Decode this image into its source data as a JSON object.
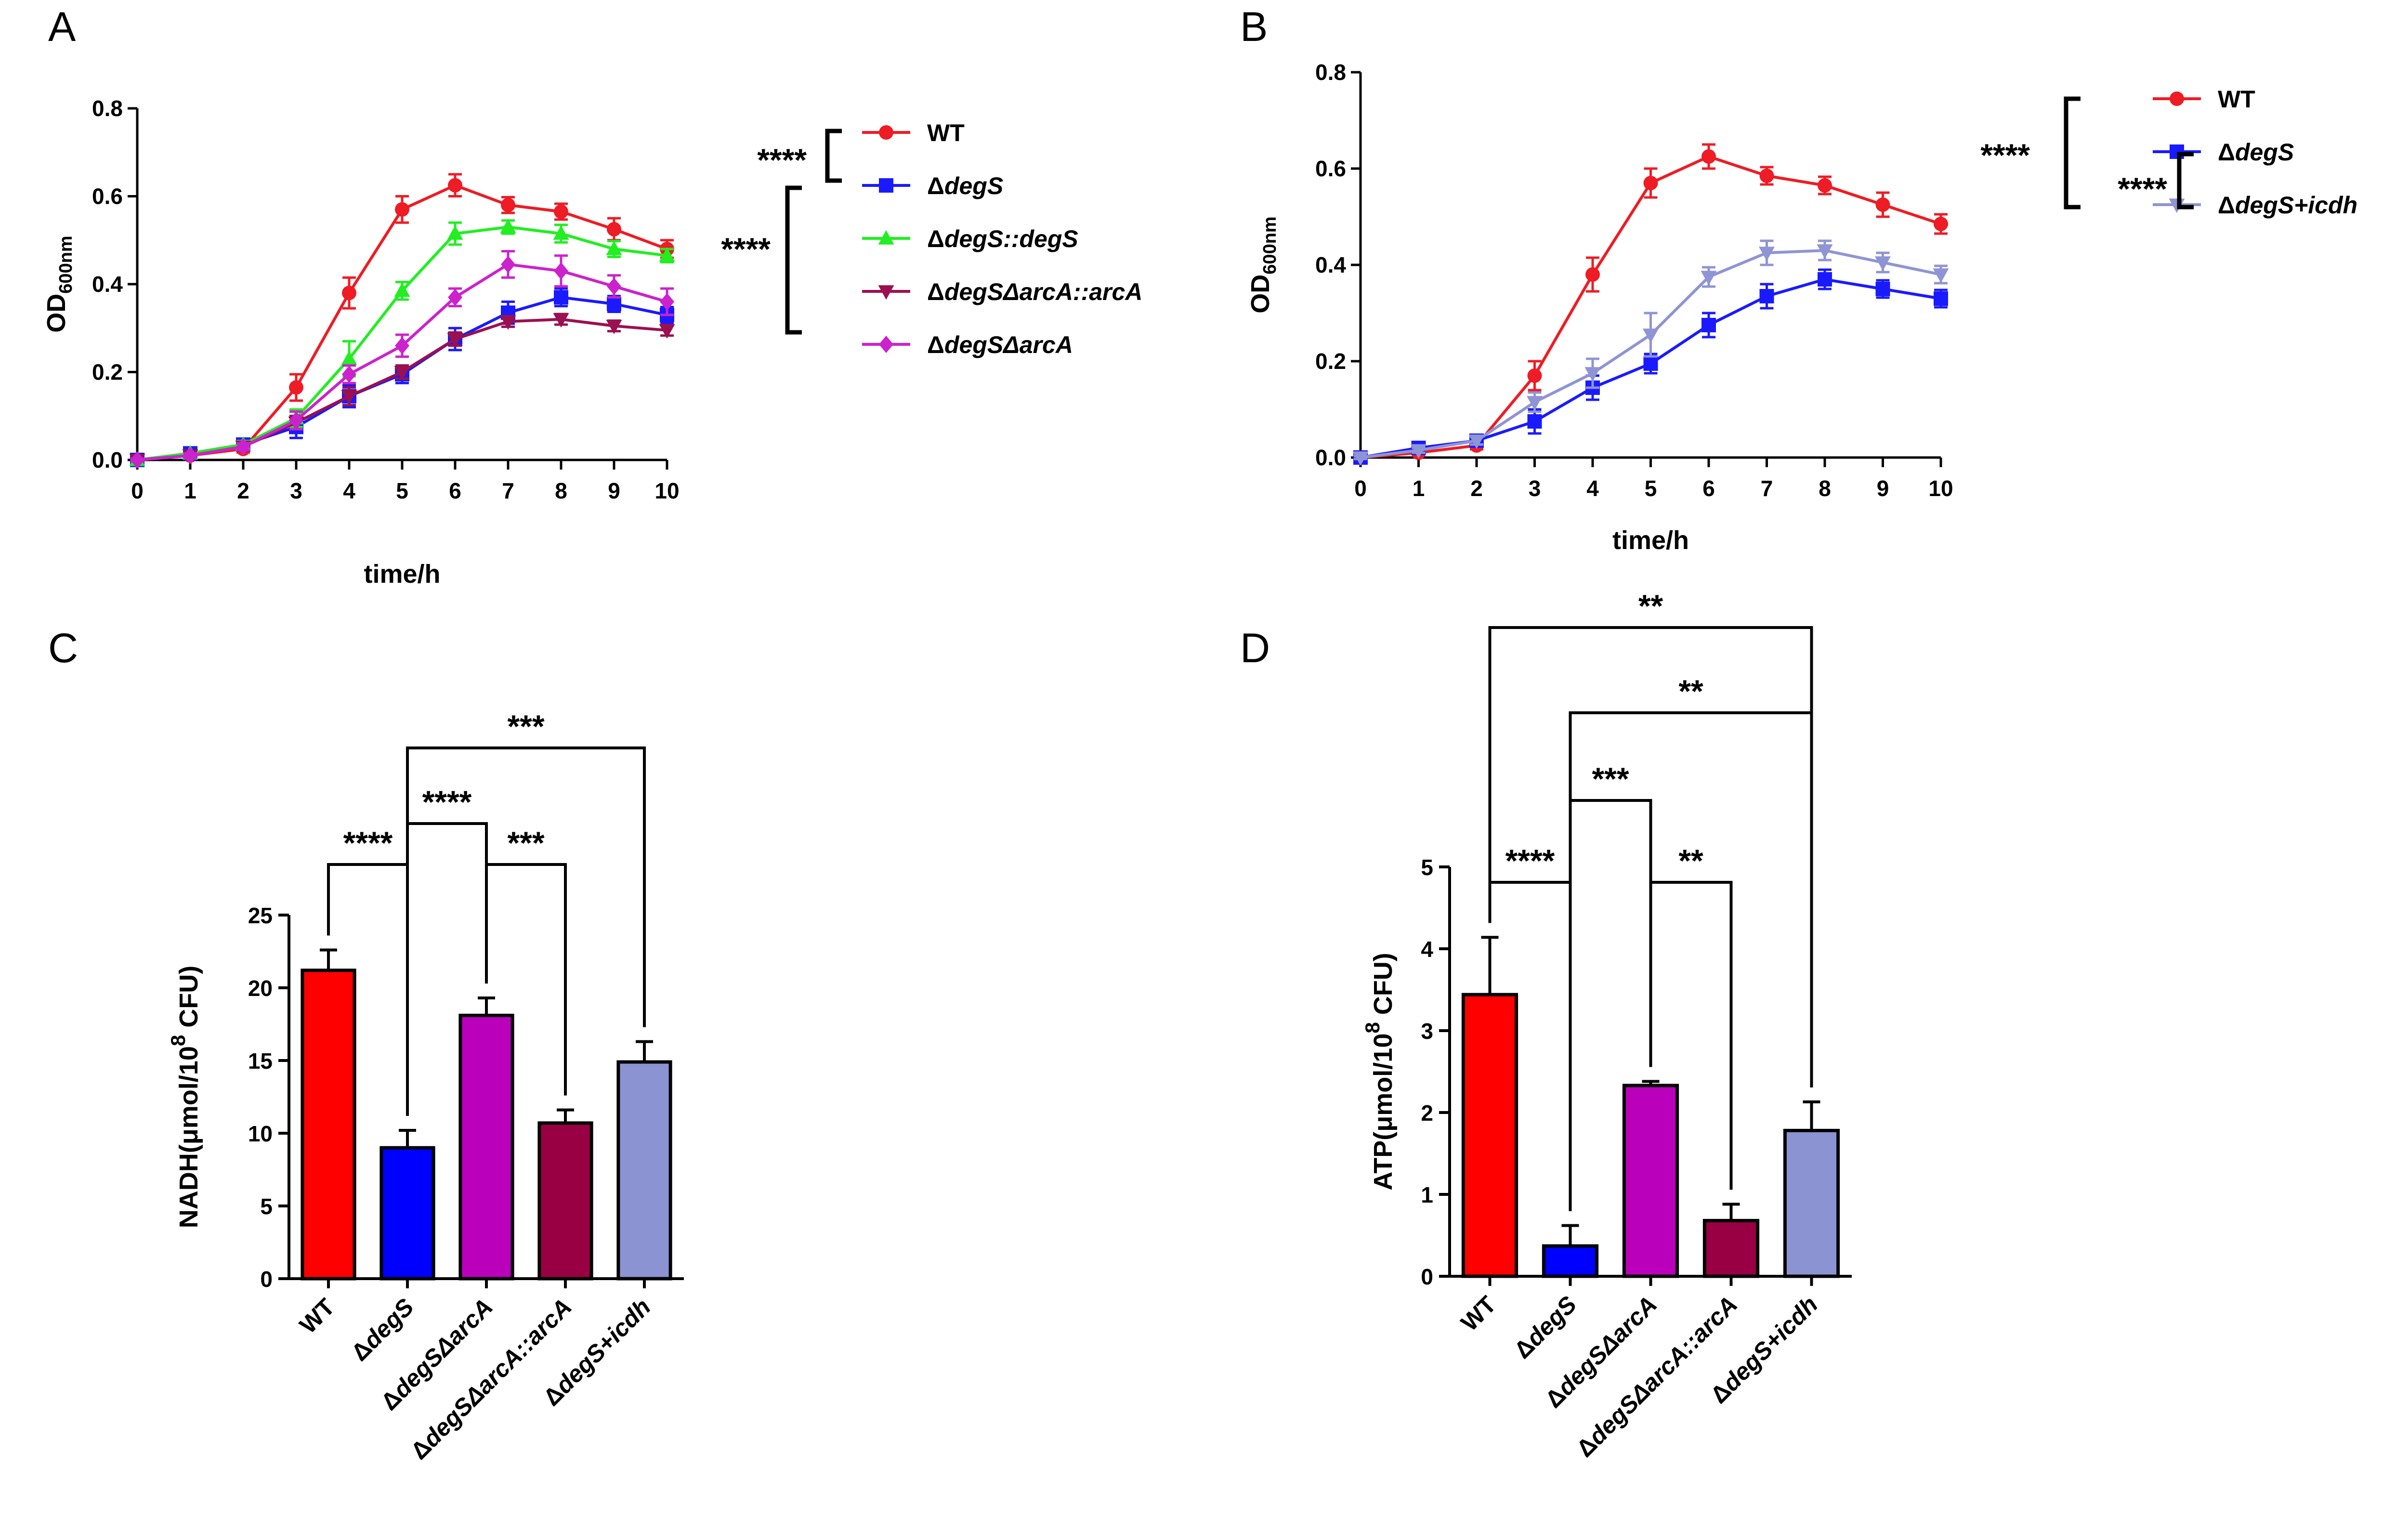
{
  "panel_labels": [
    "A",
    "B",
    "C",
    "D"
  ],
  "chart_data": [
    {
      "panel": "A",
      "type": "line",
      "xlabel": "time/h",
      "ylabel": "OD",
      "ylabel_sub": "600nm",
      "xlim": [
        0,
        10
      ],
      "ylim": [
        0,
        0.8
      ],
      "xticks": [
        "0",
        "1",
        "2",
        "3",
        "4",
        "5",
        "6",
        "7",
        "8",
        "9",
        "10"
      ],
      "yticks": [
        "0.0",
        "0.2",
        "0.4",
        "0.6",
        "0.8"
      ],
      "x": [
        0,
        1,
        2,
        3,
        4,
        5,
        6,
        7,
        8,
        9,
        10
      ],
      "series": [
        {
          "name": "WT",
          "pre": "",
          "ital": "",
          "color": "#ee1c24",
          "marker": "circle",
          "values": [
            0.0,
            0.01,
            0.025,
            0.165,
            0.38,
            0.57,
            0.625,
            0.58,
            0.565,
            0.525,
            0.48
          ],
          "err": [
            0.003,
            0.005,
            0.008,
            0.03,
            0.035,
            0.03,
            0.025,
            0.018,
            0.018,
            0.025,
            0.02
          ]
        },
        {
          "name": "ΔdegS",
          "pre": "Δ",
          "ital": "degS",
          "color": "#1a1aff",
          "marker": "square",
          "values": [
            0.0,
            0.015,
            0.035,
            0.075,
            0.145,
            0.195,
            0.275,
            0.335,
            0.37,
            0.355,
            0.33
          ],
          "err": [
            0.003,
            0.005,
            0.008,
            0.025,
            0.025,
            0.02,
            0.025,
            0.025,
            0.02,
            0.018,
            0.018
          ]
        },
        {
          "name": "ΔdegS::degS",
          "pre": "Δ",
          "ital": "degS::degS",
          "color": "#22ee22",
          "marker": "triangle",
          "values": [
            0.0,
            0.015,
            0.035,
            0.095,
            0.23,
            0.385,
            0.515,
            0.53,
            0.515,
            0.48,
            0.465
          ],
          "err": [
            0.003,
            0.005,
            0.008,
            0.02,
            0.04,
            0.02,
            0.025,
            0.015,
            0.02,
            0.018,
            0.015
          ]
        },
        {
          "name": "ΔdegSΔarcA::arcA",
          "pre": "Δ",
          "ital": "degSΔarcA::arcA",
          "color": "#9b1050",
          "marker": "triangle-down",
          "values": [
            0.0,
            0.01,
            0.03,
            0.085,
            0.145,
            0.2,
            0.275,
            0.315,
            0.32,
            0.305,
            0.295
          ],
          "err": [
            0.003,
            0.005,
            0.008,
            0.015,
            0.02,
            0.015,
            0.015,
            0.012,
            0.012,
            0.012,
            0.012
          ]
        },
        {
          "name": "ΔdegSΔarcA",
          "pre": "Δ",
          "ital": "degSΔarcA",
          "color": "#cc22cc",
          "marker": "diamond",
          "values": [
            0.0,
            0.01,
            0.03,
            0.09,
            0.195,
            0.26,
            0.37,
            0.445,
            0.43,
            0.395,
            0.36
          ],
          "err": [
            0.003,
            0.005,
            0.008,
            0.02,
            0.02,
            0.025,
            0.02,
            0.03,
            0.035,
            0.025,
            0.03
          ]
        }
      ],
      "significance": [
        "****",
        "****"
      ]
    },
    {
      "panel": "B",
      "type": "line",
      "xlabel": "time/h",
      "ylabel": "OD",
      "ylabel_sub": "600nm",
      "xlim": [
        0,
        10
      ],
      "ylim": [
        0,
        0.8
      ],
      "xticks": [
        "0",
        "1",
        "2",
        "3",
        "4",
        "5",
        "6",
        "7",
        "8",
        "9",
        "10"
      ],
      "yticks": [
        "0.0",
        "0.2",
        "0.4",
        "0.6",
        "0.8"
      ],
      "x": [
        0,
        1,
        2,
        3,
        4,
        5,
        6,
        7,
        8,
        9,
        10
      ],
      "series": [
        {
          "name": "WT",
          "pre": "",
          "ital": "",
          "color": "#ee1c24",
          "marker": "circle",
          "values": [
            0.0,
            0.01,
            0.025,
            0.17,
            0.38,
            0.57,
            0.625,
            0.585,
            0.565,
            0.525,
            0.485
          ],
          "err": [
            0.003,
            0.005,
            0.008,
            0.03,
            0.035,
            0.03,
            0.025,
            0.018,
            0.018,
            0.025,
            0.02
          ]
        },
        {
          "name": "ΔdegS",
          "pre": "Δ",
          "ital": "degS",
          "color": "#1a1aff",
          "marker": "square",
          "values": [
            0.0,
            0.02,
            0.035,
            0.075,
            0.145,
            0.195,
            0.275,
            0.335,
            0.37,
            0.35,
            0.33
          ],
          "err": [
            0.003,
            0.005,
            0.008,
            0.025,
            0.025,
            0.02,
            0.025,
            0.025,
            0.02,
            0.018,
            0.018
          ]
        },
        {
          "name": "ΔdegS+icdh",
          "pre": "Δ",
          "ital": "degS+icdh",
          "color": "#8f94d4",
          "marker": "triangle-down",
          "values": [
            0.0,
            0.015,
            0.035,
            0.115,
            0.175,
            0.255,
            0.375,
            0.425,
            0.43,
            0.405,
            0.38
          ],
          "err": [
            0.003,
            0.005,
            0.008,
            0.02,
            0.03,
            0.045,
            0.02,
            0.025,
            0.02,
            0.02,
            0.018
          ]
        }
      ],
      "significance": [
        "****",
        "****"
      ]
    },
    {
      "panel": "C",
      "type": "bar",
      "ylabel": "NADH(μmol/10",
      "ylabel_sup": "8",
      "ylabel_end": " CFU)",
      "ylim": [
        0,
        25
      ],
      "yticks": [
        "0",
        "5",
        "10",
        "15",
        "20",
        "25"
      ],
      "categories": [
        {
          "label": "WT",
          "pre": "WT",
          "ital": ""
        },
        {
          "label": "ΔdegS",
          "pre": "Δ",
          "ital": "degS"
        },
        {
          "label": "ΔdegSΔarcA",
          "pre": "Δ",
          "ital": "degSΔarcA"
        },
        {
          "label": "ΔdegSΔarcA::arcA",
          "pre": "Δ",
          "ital": "degSΔarcA::arcA"
        },
        {
          "label": "ΔdegS+icdh",
          "pre": "Δ",
          "ital": "degS+icdh"
        }
      ],
      "values": [
        21.2,
        9.0,
        18.1,
        10.7,
        14.9
      ],
      "err": [
        1.4,
        1.2,
        1.2,
        0.9,
        1.4
      ],
      "colors": [
        "#ff0000",
        "#0000ff",
        "#bb00bb",
        "#990044",
        "#8c93d2"
      ],
      "significance": [
        {
          "from": 0,
          "to": 1,
          "label": "****"
        },
        {
          "from": 1,
          "to": 2,
          "label": "****"
        },
        {
          "from": 2,
          "to": 3,
          "label": "***"
        },
        {
          "from": 1,
          "to": 4,
          "label": "***"
        }
      ]
    },
    {
      "panel": "D",
      "type": "bar",
      "ylabel": "ATP(μmol/10",
      "ylabel_sup": "8",
      "ylabel_end": " CFU)",
      "ylim": [
        0,
        5
      ],
      "yticks": [
        "0",
        "1",
        "2",
        "3",
        "4",
        "5"
      ],
      "categories": [
        {
          "label": "WT",
          "pre": "WT",
          "ital": ""
        },
        {
          "label": "ΔdegS",
          "pre": "Δ",
          "ital": "degS"
        },
        {
          "label": "ΔdegSΔarcA",
          "pre": "Δ",
          "ital": "degSΔarcA"
        },
        {
          "label": "ΔdegSΔarcA::arcA",
          "pre": "Δ",
          "ital": "degSΔarcA::arcA"
        },
        {
          "label": "ΔdegS+icdh",
          "pre": "Δ",
          "ital": "degS+icdh"
        }
      ],
      "values": [
        3.44,
        0.37,
        2.33,
        0.68,
        1.78
      ],
      "err": [
        0.7,
        0.25,
        0.05,
        0.2,
        0.35
      ],
      "colors": [
        "#ff0000",
        "#0000ff",
        "#bb00bb",
        "#990044",
        "#8c93d2"
      ],
      "significance": [
        {
          "from": 0,
          "to": 1,
          "label": "****"
        },
        {
          "from": 2,
          "to": 3,
          "label": "**"
        },
        {
          "from": 1,
          "to": 2,
          "label": "***"
        },
        {
          "from": 1,
          "to": 4,
          "label": "**"
        },
        {
          "from": 0,
          "to": 4,
          "label": "**"
        }
      ]
    }
  ]
}
